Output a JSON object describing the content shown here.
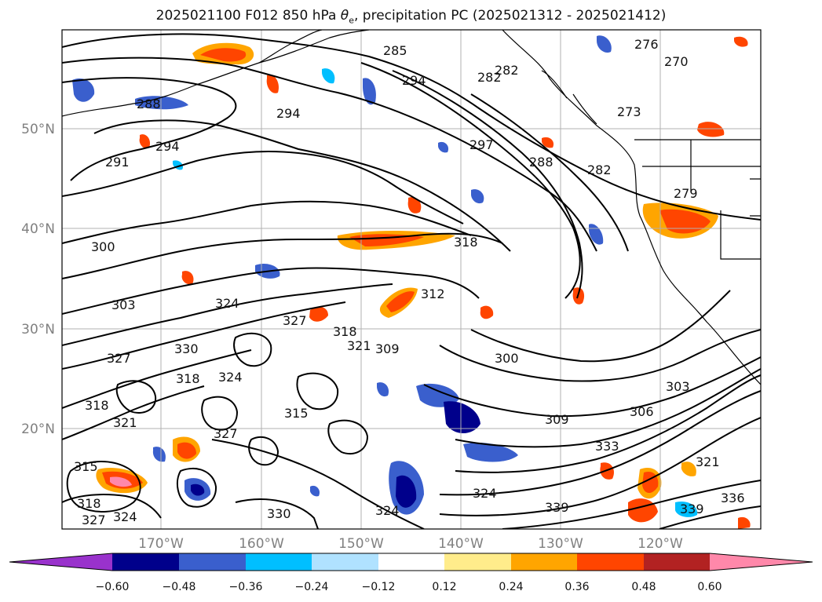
{
  "title": {
    "prefix": "2025021100 F012 850 hPa ",
    "theta": "θ",
    "theta_sub": "e",
    "suffix": ", precipitation PC (2025021312 - 2025021412)"
  },
  "map": {
    "lat_labels": [
      "50°N",
      "40°N",
      "30°N",
      "20°N"
    ],
    "lon_labels": [
      "170°W",
      "160°W",
      "150°W",
      "140°W",
      "130°W",
      "120°W"
    ],
    "colors": {
      "coast": "#000000",
      "grid": "#b0b0b0",
      "contour": "#000000",
      "frame": "#000000"
    }
  },
  "contour_labels": [
    "285",
    "294",
    "282",
    "276",
    "270",
    "288",
    "273",
    "282",
    "294",
    "291",
    "294",
    "279",
    "297",
    "288",
    "282",
    "300",
    "318",
    "303",
    "324",
    "327",
    "330",
    "312",
    "300",
    "321",
    "327",
    "318",
    "309",
    "309",
    "306",
    "303",
    "333",
    "321",
    "336",
    "339",
    "339",
    "324",
    "327",
    "324",
    "318",
    "315",
    "318",
    "321",
    "318",
    "315",
    "324",
    "324",
    "327",
    "330"
  ],
  "colorbar": {
    "tick_labels": [
      "−0.60",
      "−0.48",
      "−0.36",
      "−0.24",
      "−0.12",
      "0.12",
      "0.24",
      "0.36",
      "0.48",
      "0.60"
    ],
    "colors": [
      "#9932cc",
      "#00008b",
      "#3a5fcd",
      "#00bfff",
      "#b0e2ff",
      "#ffffff",
      "#ffec8b",
      "#ffa500",
      "#ff4500",
      "#b22222",
      "#ff88aa"
    ]
  }
}
